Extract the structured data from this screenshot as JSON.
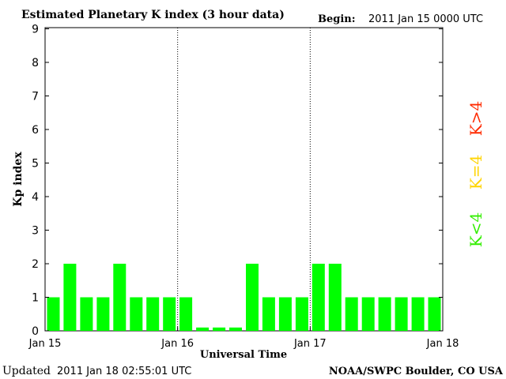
{
  "header": {
    "title": "Estimated Planetary K index (3 hour data)",
    "begin_label": "Begin:",
    "begin_value": "2011 Jan 15 0000 UTC"
  },
  "footer": {
    "updated_label": "Updated",
    "updated_value": "2011 Jan 18 02:55:01 UTC",
    "credit": "NOAA/SWPC Boulder, CO USA"
  },
  "legend": {
    "high": {
      "label": "K>4",
      "color": "#ff2a00"
    },
    "equal": {
      "label": "K=4",
      "color": "#ffd400"
    },
    "low": {
      "label": "K<4",
      "color": "#33ee00"
    }
  },
  "colors": {
    "bar": "#00ff00",
    "axis": "#000000",
    "day_separator": "#000000"
  },
  "chart_data": {
    "type": "bar",
    "title": "Estimated Planetary K index (3 hour data)",
    "xlabel": "Universal Time",
    "ylabel": "Kp index",
    "ylim": [
      0,
      9
    ],
    "y_ticks": [
      "0",
      "1",
      "2",
      "3",
      "4",
      "5",
      "6",
      "7",
      "8",
      "9"
    ],
    "x_tick_labels": [
      "Jan 15",
      "Jan 16",
      "Jan 17",
      "Jan 18"
    ],
    "interval_hours": 3,
    "day_separators": [
      "Jan 16",
      "Jan 17"
    ],
    "grid": false,
    "values": [
      1,
      2,
      1,
      1,
      2,
      1,
      1,
      1,
      1,
      0.1,
      0.1,
      0.1,
      2,
      1,
      1,
      1,
      2,
      2,
      1,
      1,
      1,
      1,
      1,
      1
    ]
  }
}
